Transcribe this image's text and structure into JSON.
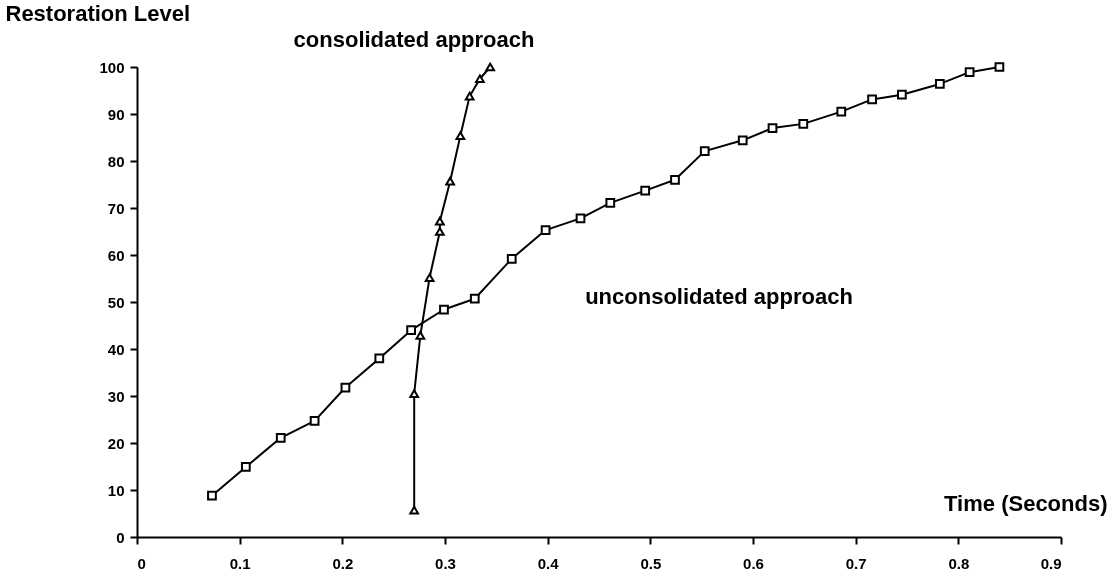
{
  "chart_data": {
    "type": "line",
    "xlabel": "Time (Seconds)",
    "ylabel": "Restoration Level",
    "xlim": [
      0,
      0.9
    ],
    "xticks": [
      0,
      0.1,
      0.2,
      0.3,
      0.4,
      0.5,
      0.6,
      0.7,
      0.8,
      0.9
    ],
    "ylim": [
      0,
      100
    ],
    "yticks": [
      0,
      10,
      20,
      30,
      40,
      50,
      60,
      70,
      80,
      90,
      100
    ],
    "grid": false,
    "legend": false,
    "line_style": "solid",
    "series": [
      {
        "name": "consolidated approach",
        "color": "#000000",
        "marker": "triangle",
        "x": [
          0.27,
          0.27,
          0.276,
          0.285,
          0.295,
          0.295,
          0.305,
          0.315,
          0.324,
          0.334,
          0.344
        ],
        "values": [
          5.7,
          30.5,
          42.9,
          55.2,
          65,
          67.2,
          75.7,
          85.4,
          93.8,
          97.5,
          100
        ]
      },
      {
        "name": "unconsolidated approach",
        "color": "#000000",
        "marker": "square",
        "x": [
          0.073,
          0.106,
          0.14,
          0.173,
          0.203,
          0.236,
          0.267,
          0.299,
          0.329,
          0.365,
          0.398,
          0.432,
          0.461,
          0.495,
          0.524,
          0.553,
          0.59,
          0.619,
          0.649,
          0.686,
          0.716,
          0.745,
          0.782,
          0.811,
          0.84
        ],
        "values": [
          8.8,
          14.9,
          21.1,
          24.7,
          31.8,
          38,
          44,
          48.4,
          50.7,
          59.2,
          65.3,
          67.8,
          71.1,
          73.7,
          76,
          82.1,
          84.4,
          87,
          87.9,
          90.5,
          93.1,
          94.1,
          96.4,
          98.9,
          100
        ]
      }
    ]
  }
}
